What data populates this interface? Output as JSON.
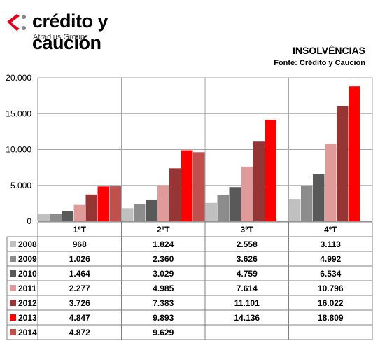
{
  "brand": {
    "name": "crédito y caución",
    "sub": "Atradius Group",
    "mark_color": "#e2001a"
  },
  "header": {
    "title": "INSOLVÊNCIAS",
    "source": "Fonte: Crédito y Caución"
  },
  "chart_data": {
    "type": "bar",
    "categories": [
      "1ºT",
      "2ºT",
      "3ºT",
      "4ºT"
    ],
    "ylim": [
      0,
      20000
    ],
    "ytick_labels": [
      "0",
      "5.000",
      "10.000",
      "15.000",
      "20.000"
    ],
    "ytick_values": [
      0,
      5000,
      10000,
      15000,
      20000
    ],
    "grid": true,
    "series": [
      {
        "name": "2008",
        "color": "#c0c0c0",
        "values": [
          968,
          1824,
          2558,
          3113
        ],
        "labels": [
          "968",
          "1.824",
          "2.558",
          "3.113"
        ]
      },
      {
        "name": "2009",
        "color": "#8c8c8c",
        "values": [
          1026,
          2360,
          3626,
          4992
        ],
        "labels": [
          "1.026",
          "2.360",
          "3.626",
          "4.992"
        ]
      },
      {
        "name": "2010",
        "color": "#595959",
        "values": [
          1464,
          3029,
          4759,
          6534
        ],
        "labels": [
          "1.464",
          "3.029",
          "4.759",
          "6.534"
        ]
      },
      {
        "name": "2011",
        "color": "#e09a9a",
        "values": [
          2277,
          4985,
          7614,
          10796
        ],
        "labels": [
          "2.277",
          "4.985",
          "7.614",
          "10.796"
        ]
      },
      {
        "name": "2012",
        "color": "#963634",
        "values": [
          3726,
          7383,
          11101,
          16022
        ],
        "labels": [
          "3.726",
          "7.383",
          "11.101",
          "16.022"
        ]
      },
      {
        "name": "2013",
        "color": "#ff0000",
        "values": [
          4847,
          9893,
          14136,
          18809
        ],
        "labels": [
          "4.847",
          "9.893",
          "14.136",
          "18.809"
        ]
      },
      {
        "name": "2014",
        "color": "#c0504d",
        "values": [
          4872,
          9629,
          null,
          null
        ],
        "labels": [
          "4.872",
          "9.629",
          "",
          ""
        ]
      }
    ]
  }
}
